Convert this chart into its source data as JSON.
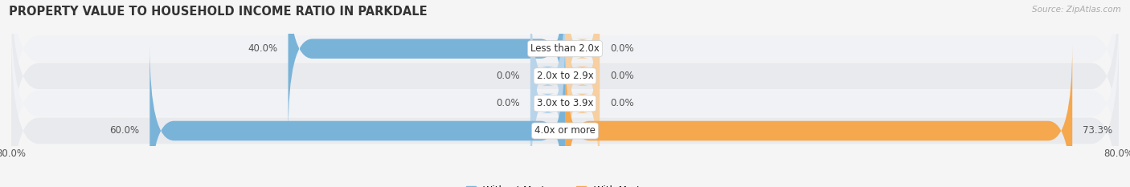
{
  "title": "PROPERTY VALUE TO HOUSEHOLD INCOME RATIO IN PARKDALE",
  "source": "Source: ZipAtlas.com",
  "categories": [
    "Less than 2.0x",
    "2.0x to 2.9x",
    "3.0x to 3.9x",
    "4.0x or more"
  ],
  "without_mortgage": [
    40.0,
    0.0,
    0.0,
    60.0
  ],
  "with_mortgage": [
    0.0,
    0.0,
    0.0,
    73.3
  ],
  "x_min": -80.0,
  "x_max": 80.0,
  "color_without": "#7ab3d8",
  "color_with": "#f5a84e",
  "color_without_light": "#b8d4ea",
  "color_with_light": "#f7cfa0",
  "background_row_odd": "#f0f2f5",
  "background_row_even": "#e8eaee",
  "background_fig": "#f5f5f5",
  "label_fontsize": 8.5,
  "title_fontsize": 10.5,
  "legend_fontsize": 8.5,
  "bar_height": 0.72,
  "stub_value": 5.0,
  "x_axis_label_left": "80.0%",
  "x_axis_label_right": "80.0%"
}
